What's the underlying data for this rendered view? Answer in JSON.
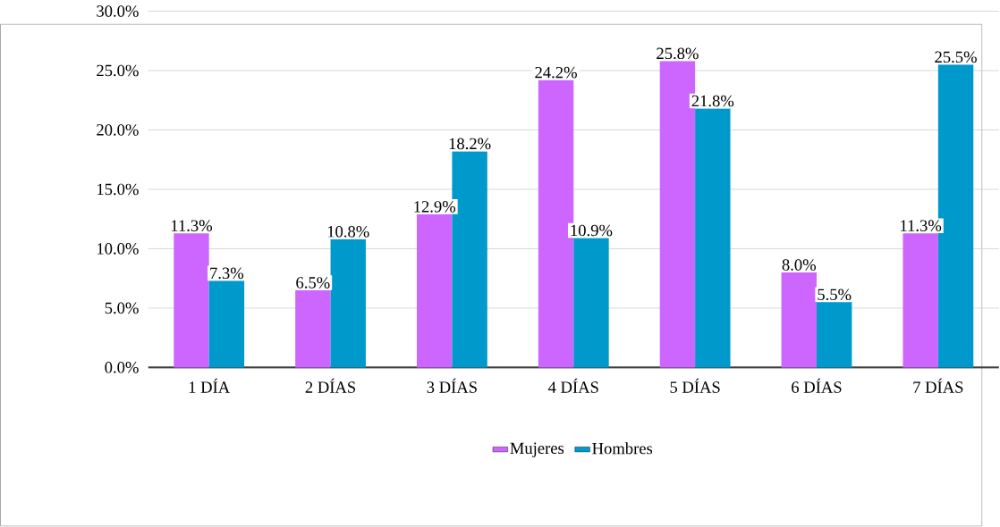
{
  "chart_data": {
    "type": "bar",
    "categories": [
      "1 DÍA",
      "2 DÍAS",
      "3 DÍAS",
      "4 DÍAS",
      "5 DÍAS",
      "6 DÍAS",
      "7 DÍAS"
    ],
    "series": [
      {
        "name": "Mujeres",
        "color": "#cc66ff",
        "values": [
          11.3,
          6.5,
          12.9,
          24.2,
          25.8,
          8.0,
          11.3
        ],
        "value_labels": [
          "11.3%",
          "6.5%",
          "12.9%",
          "24.2%",
          "25.8%",
          "8.0%",
          "11.3%"
        ]
      },
      {
        "name": "Hombres",
        "color": "#0099cc",
        "values": [
          7.3,
          10.8,
          18.2,
          10.9,
          21.8,
          5.5,
          25.5
        ],
        "value_labels": [
          "7.3%",
          "10.8%",
          "18.2%",
          "10.9%",
          "21.8%",
          "5.5%",
          "25.5%"
        ]
      }
    ],
    "ylim": [
      0,
      30
    ],
    "yticks": [
      {
        "value": 0,
        "label": "0.0%"
      },
      {
        "value": 5,
        "label": "5.0%"
      },
      {
        "value": 10,
        "label": "10.0%"
      },
      {
        "value": 15,
        "label": "15.0%"
      },
      {
        "value": 20,
        "label": "20.0%"
      },
      {
        "value": 25,
        "label": "25.0%"
      },
      {
        "value": 30,
        "label": "30.0%"
      }
    ],
    "grid": "y",
    "legend": "bottom"
  }
}
